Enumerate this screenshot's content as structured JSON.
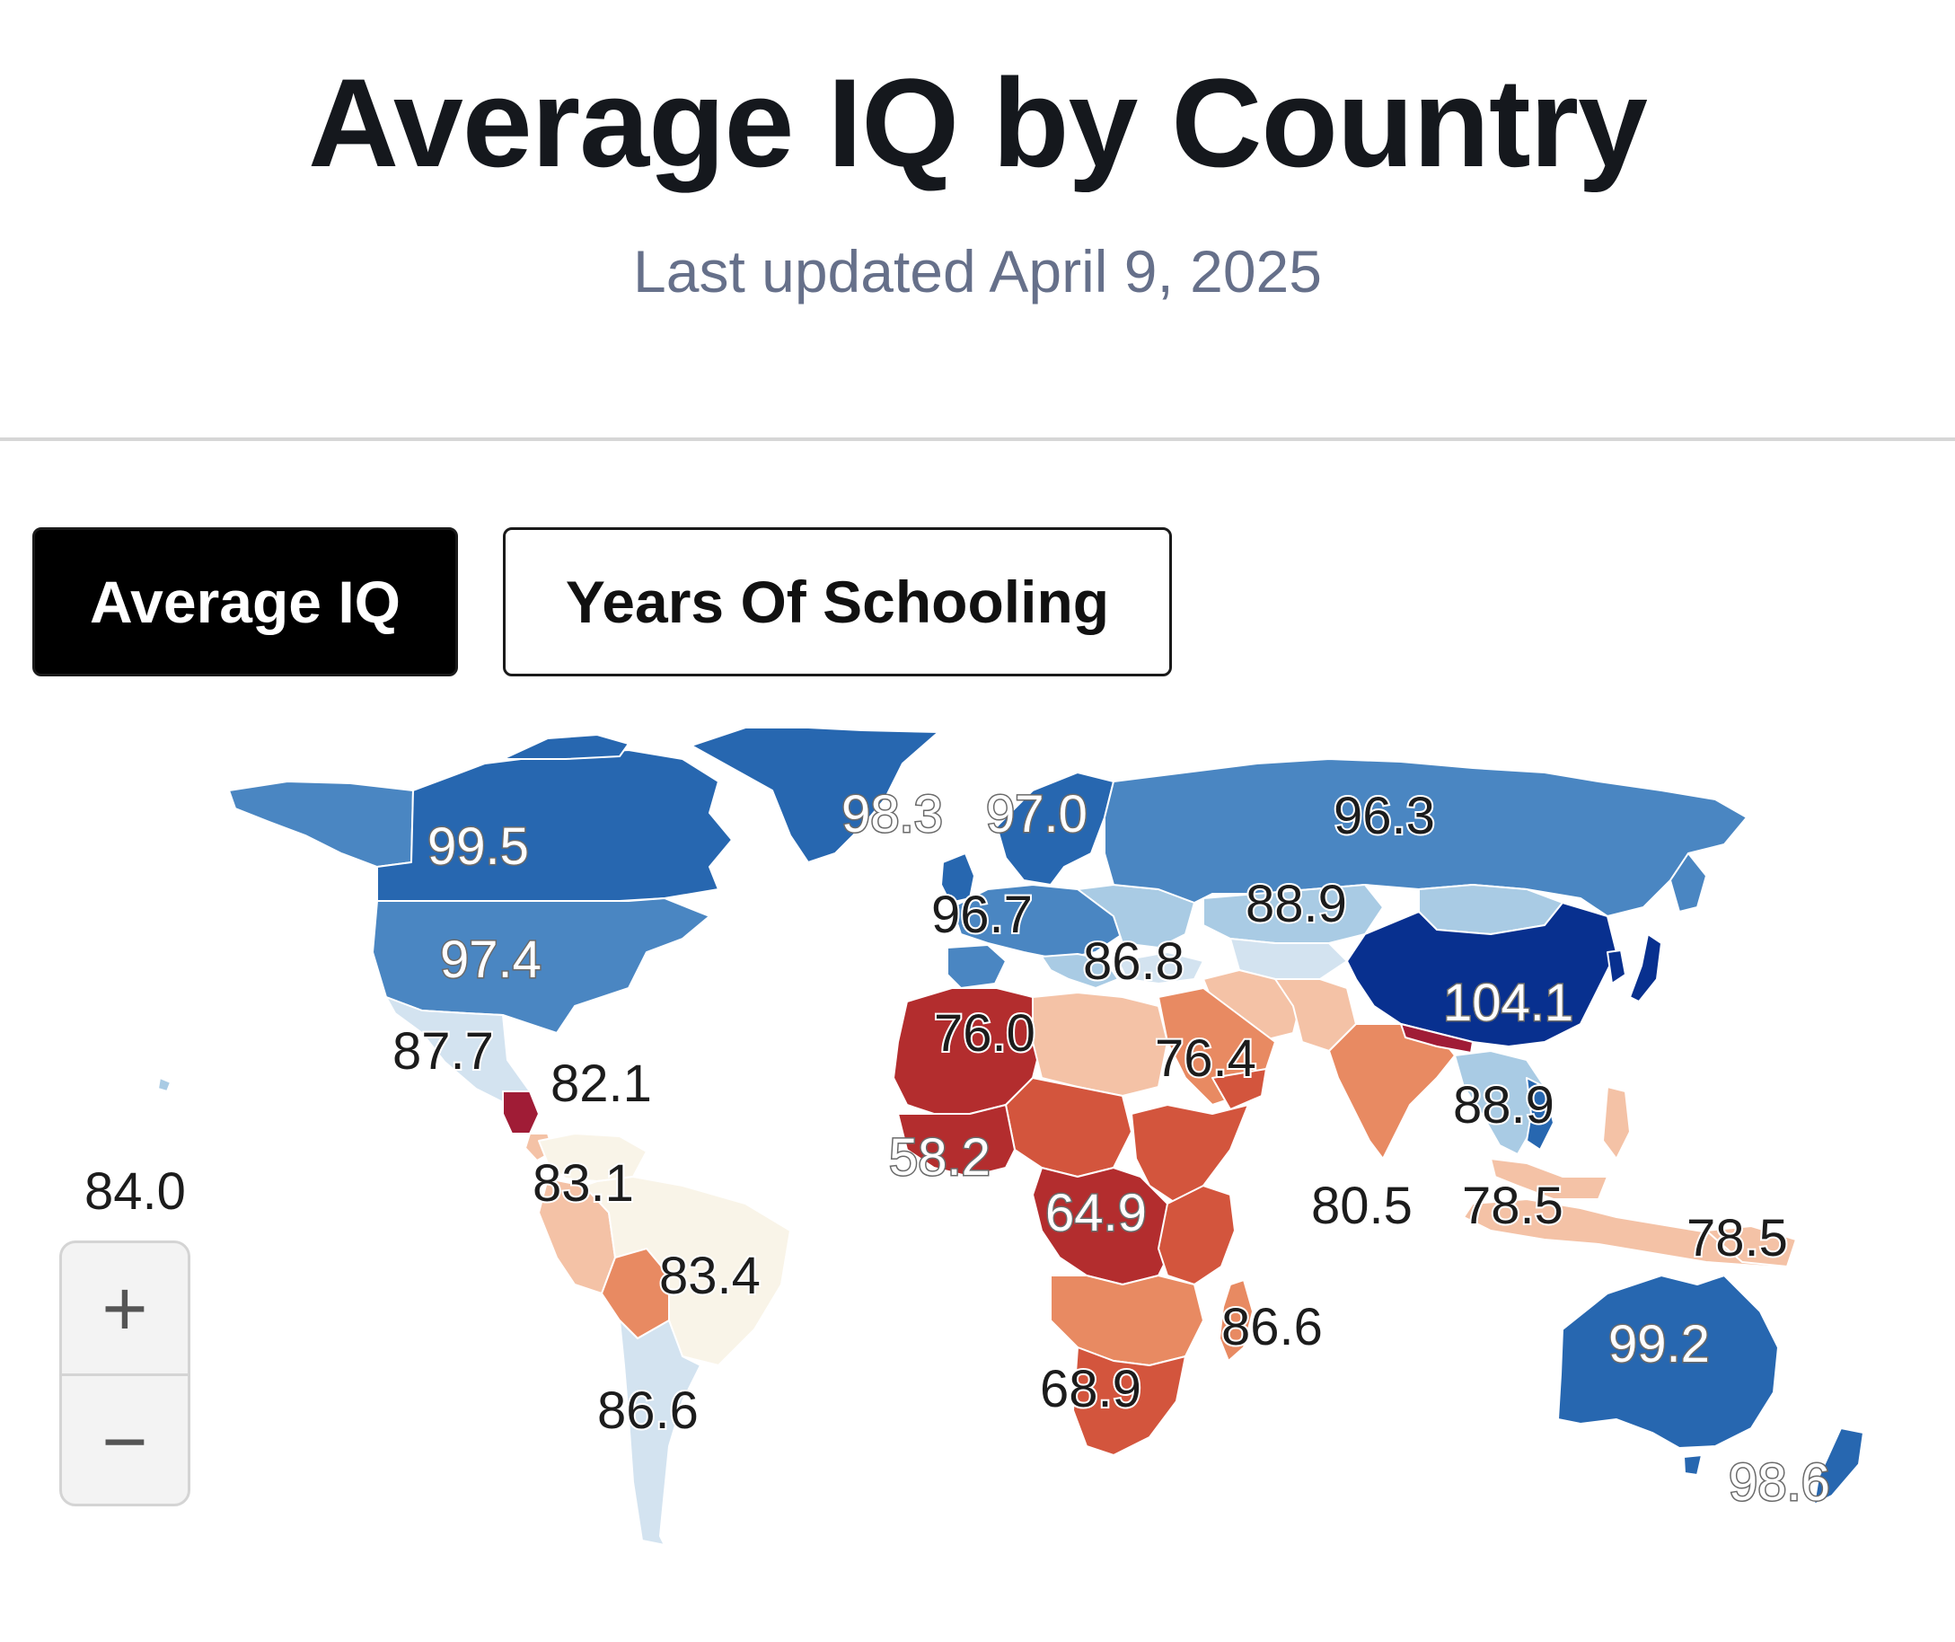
{
  "header": {
    "title": "Average IQ by Country",
    "subtitle": "Last updated April 9, 2025"
  },
  "tabs": [
    {
      "label": "Average IQ",
      "active": true
    },
    {
      "label": "Years Of Schooling",
      "active": false
    }
  ],
  "zoom": {
    "in_label": "+",
    "out_label": "−"
  },
  "colors": {
    "dark_blue": "#08308f",
    "blue": "#2767b0",
    "mid_blue": "#4a86c2",
    "light_blue": "#a9cbe4",
    "pale_blue": "#d3e3f0",
    "cream": "#f9f4e8",
    "peach": "#f4c2a6",
    "orange": "#e88a62",
    "red_orange": "#d3553d",
    "red": "#b32d2e",
    "dark_red": "#a01c36"
  },
  "map_labels": [
    {
      "id": "canada",
      "text": "99.5",
      "style": "light"
    },
    {
      "id": "usa",
      "text": "97.4",
      "style": "light"
    },
    {
      "id": "mexico",
      "text": "87.7",
      "style": "dark"
    },
    {
      "id": "caribbean",
      "text": "82.1",
      "style": "dark"
    },
    {
      "id": "pacific-isles",
      "text": "84.0",
      "style": "dark"
    },
    {
      "id": "colombia",
      "text": "83.1",
      "style": "dark"
    },
    {
      "id": "brazil",
      "text": "83.4",
      "style": "dark"
    },
    {
      "id": "argentina",
      "text": "86.6",
      "style": "dark"
    },
    {
      "id": "uk",
      "text": "98.3",
      "style": "light"
    },
    {
      "id": "scandinavia",
      "text": "97.0",
      "style": "light"
    },
    {
      "id": "france",
      "text": "96.7",
      "style": "dark"
    },
    {
      "id": "russia",
      "text": "96.3",
      "style": "dark"
    },
    {
      "id": "kazakhstan",
      "text": "88.9",
      "style": "dark"
    },
    {
      "id": "turkey",
      "text": "86.8",
      "style": "dark"
    },
    {
      "id": "china",
      "text": "104.1",
      "style": "light"
    },
    {
      "id": "algeria",
      "text": "76.0",
      "style": "dark"
    },
    {
      "id": "saudi-arabia",
      "text": "76.4",
      "style": "dark"
    },
    {
      "id": "thailand",
      "text": "88.9",
      "style": "dark"
    },
    {
      "id": "west-africa",
      "text": "58.2",
      "style": "light"
    },
    {
      "id": "central-africa",
      "text": "64.9",
      "style": "light"
    },
    {
      "id": "indian-ocean",
      "text": "80.5",
      "style": "dark"
    },
    {
      "id": "malaysia",
      "text": "78.5",
      "style": "dark"
    },
    {
      "id": "indonesia",
      "text": "78.5",
      "style": "dark"
    },
    {
      "id": "madagascar",
      "text": "86.6",
      "style": "dark"
    },
    {
      "id": "south-africa",
      "text": "68.9",
      "style": "dark"
    },
    {
      "id": "australia",
      "text": "99.2",
      "style": "light"
    },
    {
      "id": "new-zealand",
      "text": "98.6",
      "style": "light"
    }
  ]
}
